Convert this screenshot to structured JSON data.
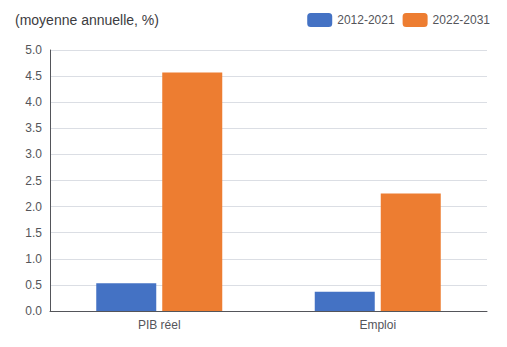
{
  "chart_data": {
    "type": "bar",
    "title": "(moyenne annuelle, %)",
    "categories": [
      "PIB réel",
      "Emploi"
    ],
    "series": [
      {
        "name": "2012-2021",
        "color": "#4472C4",
        "values": [
          0.53,
          0.37
        ]
      },
      {
        "name": "2022-2031",
        "color": "#ED7D31",
        "values": [
          4.57,
          2.25
        ]
      }
    ],
    "ylim": [
      0.0,
      5.0
    ],
    "yticks": [
      {
        "value": 0,
        "label": "0.0"
      },
      0.5,
      {
        "value": 1,
        "label": "1.0"
      },
      1.5,
      {
        "value": 2,
        "label": "2.0"
      },
      2.5,
      {
        "value": 3,
        "label": "3.0"
      },
      3.5,
      {
        "value": 4,
        "label": "4.0"
      },
      4.5,
      {
        "value": 5,
        "label": "5.0"
      }
    ],
    "grid": true,
    "legend": "top"
  }
}
